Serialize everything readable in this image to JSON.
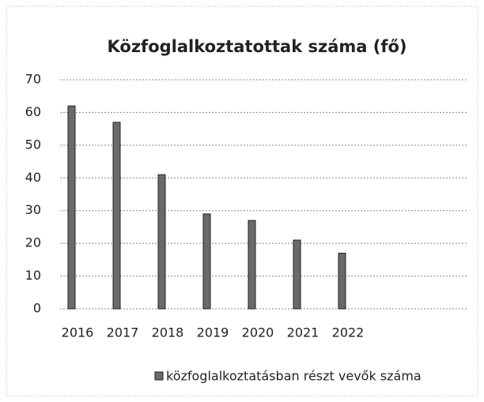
{
  "chart_data": {
    "type": "bar",
    "title": "Közfoglalkoztatottak száma (fő)",
    "categories": [
      "2016",
      "2017",
      "2018",
      "2019",
      "2020",
      "2021",
      "2022"
    ],
    "series": [
      {
        "name": "közfoglalkoztatásban részt vevők száma",
        "color": "#6a6a6a",
        "values": [
          62,
          57,
          41,
          29,
          27,
          21,
          17
        ]
      }
    ],
    "ylim": [
      0,
      70
    ],
    "yticks": [
      0,
      10,
      20,
      30,
      40,
      50,
      60,
      70
    ],
    "grid": true,
    "legend": "bottom"
  }
}
